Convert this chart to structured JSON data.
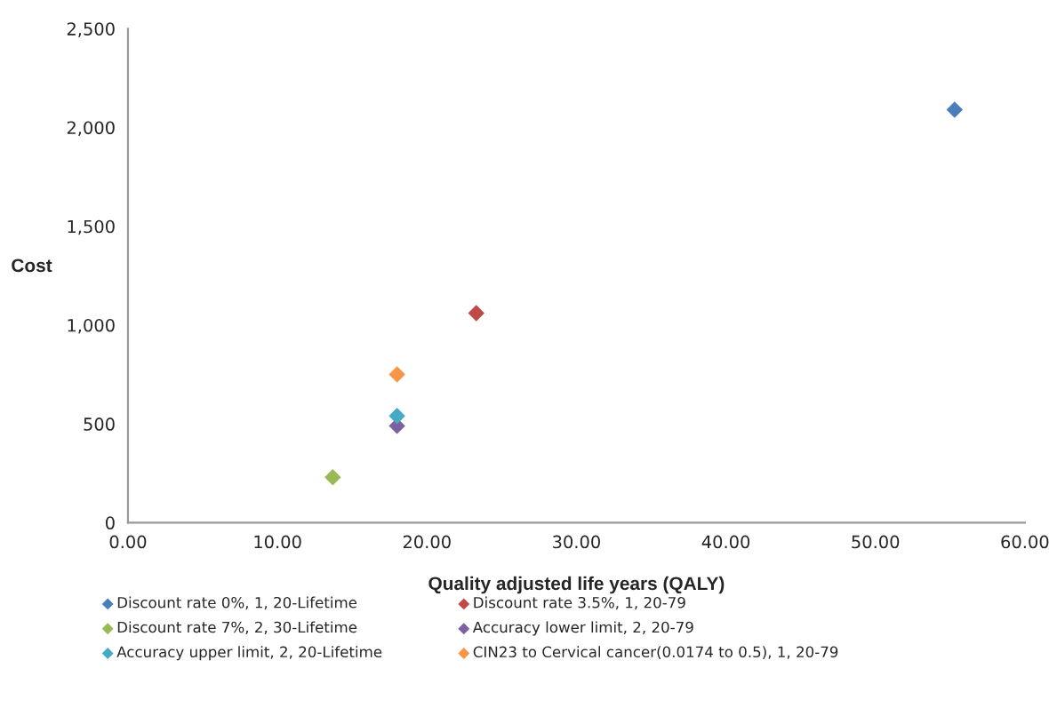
{
  "chart_data": {
    "type": "scatter",
    "xlabel": "Quality adjusted life years (QALY)",
    "ylabel": "Cost",
    "xlim": [
      0,
      60
    ],
    "xticks": [
      {
        "value": 0,
        "label": "0.00"
      },
      {
        "value": 10,
        "label": "10.00"
      },
      {
        "value": 20,
        "label": "20.00"
      },
      {
        "value": 30,
        "label": "30.00"
      },
      {
        "value": 40,
        "label": "40.00"
      },
      {
        "value": 50,
        "label": "50.00"
      },
      {
        "value": 60,
        "label": "60.00"
      }
    ],
    "ylim": [
      0,
      2500
    ],
    "yticks": [
      {
        "value": 0,
        "label": "0"
      },
      {
        "value": 500,
        "label": "500"
      },
      {
        "value": 1000,
        "label": "1,000"
      },
      {
        "value": 1500,
        "label": "1,500"
      },
      {
        "value": 2000,
        "label": "2,000"
      },
      {
        "value": 2500,
        "label": "2,500"
      }
    ],
    "grid": false,
    "legend": "bottom",
    "marker": "diamond",
    "series": [
      {
        "name": "Discount rate 0%, 1, 20-Lifetime",
        "color": "#4a7ebb",
        "x": [
          55.3
        ],
        "values": [
          2090
        ]
      },
      {
        "name": "Discount rate 3.5%, 1, 20-79",
        "color": "#be4b48",
        "x": [
          23.3
        ],
        "values": [
          1060
        ]
      },
      {
        "name": "Discount rate 7%, 2, 30-Lifetime",
        "color": "#98b954",
        "x": [
          13.7
        ],
        "values": [
          230
        ]
      },
      {
        "name": "Accuracy lower limit, 2, 20-79",
        "color": "#7d60a0",
        "x": [
          18.0
        ],
        "values": [
          490
        ]
      },
      {
        "name": "Accuracy upper limit, 2, 20-Lifetime",
        "color": "#46aac5",
        "x": [
          18.0
        ],
        "values": [
          540
        ]
      },
      {
        "name": "CIN23 to Cervical cancer(0.0174 to 0.5), 1, 20-79",
        "color": "#f79646",
        "x": [
          18.0
        ],
        "values": [
          750
        ]
      }
    ]
  }
}
